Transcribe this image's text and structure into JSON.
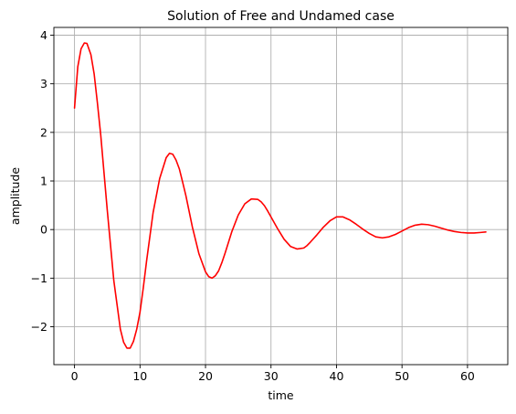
{
  "chart_data": {
    "type": "line",
    "title": "Solution of Free and Undamed case",
    "xlabel": "time",
    "ylabel": "amplitude",
    "xlim": [
      -3.15,
      66.15
    ],
    "ylim": [
      -2.78,
      4.16
    ],
    "xticks": [
      0,
      10,
      20,
      30,
      40,
      50,
      60
    ],
    "xtick_labels": [
      "0",
      "10",
      "20",
      "30",
      "40",
      "50",
      "60"
    ],
    "yticks": [
      -2,
      -1,
      0,
      1,
      2,
      3,
      4
    ],
    "ytick_labels": [
      "−2",
      "−1",
      "0",
      "1",
      "2",
      "3",
      "4"
    ],
    "grid": true,
    "series": [
      {
        "color": "#ff0000",
        "x": [
          0,
          0.5,
          1,
          1.5,
          1.9,
          2.5,
          3,
          3.5,
          4,
          5,
          6,
          7,
          7.5,
          8,
          8.5,
          9,
          9.5,
          10,
          10.5,
          11,
          12,
          13,
          14,
          14.5,
          15,
          15.5,
          16,
          16.5,
          17,
          18,
          19,
          20,
          20.5,
          21,
          21.5,
          22,
          22.5,
          23,
          24,
          25,
          26,
          27,
          28,
          28.5,
          29,
          29.5,
          30,
          31,
          32,
          33,
          34,
          35,
          35.5,
          36,
          37,
          38,
          39,
          40,
          41,
          42,
          43,
          44,
          45,
          46,
          47,
          48,
          49,
          50,
          51,
          52,
          53,
          54,
          55,
          56,
          57,
          58,
          59,
          60,
          61,
          62,
          62.8
        ],
        "y": [
          2.5,
          3.35,
          3.72,
          3.84,
          3.83,
          3.6,
          3.2,
          2.6,
          1.95,
          0.4,
          -1.05,
          -2.05,
          -2.32,
          -2.44,
          -2.44,
          -2.3,
          -2.05,
          -1.7,
          -1.2,
          -0.65,
          0.35,
          1.05,
          1.48,
          1.57,
          1.55,
          1.43,
          1.25,
          0.98,
          0.7,
          0.05,
          -0.5,
          -0.87,
          -0.97,
          -1.0,
          -0.95,
          -0.85,
          -0.68,
          -0.48,
          -0.05,
          0.3,
          0.53,
          0.63,
          0.62,
          0.57,
          0.49,
          0.38,
          0.26,
          0.02,
          -0.2,
          -0.35,
          -0.4,
          -0.38,
          -0.33,
          -0.26,
          -0.11,
          0.05,
          0.18,
          0.26,
          0.26,
          0.2,
          0.11,
          0.01,
          -0.08,
          -0.15,
          -0.17,
          -0.15,
          -0.1,
          -0.03,
          0.04,
          0.09,
          0.11,
          0.1,
          0.07,
          0.03,
          -0.01,
          -0.04,
          -0.06,
          -0.07,
          -0.07,
          -0.06,
          -0.05
        ]
      }
    ]
  }
}
